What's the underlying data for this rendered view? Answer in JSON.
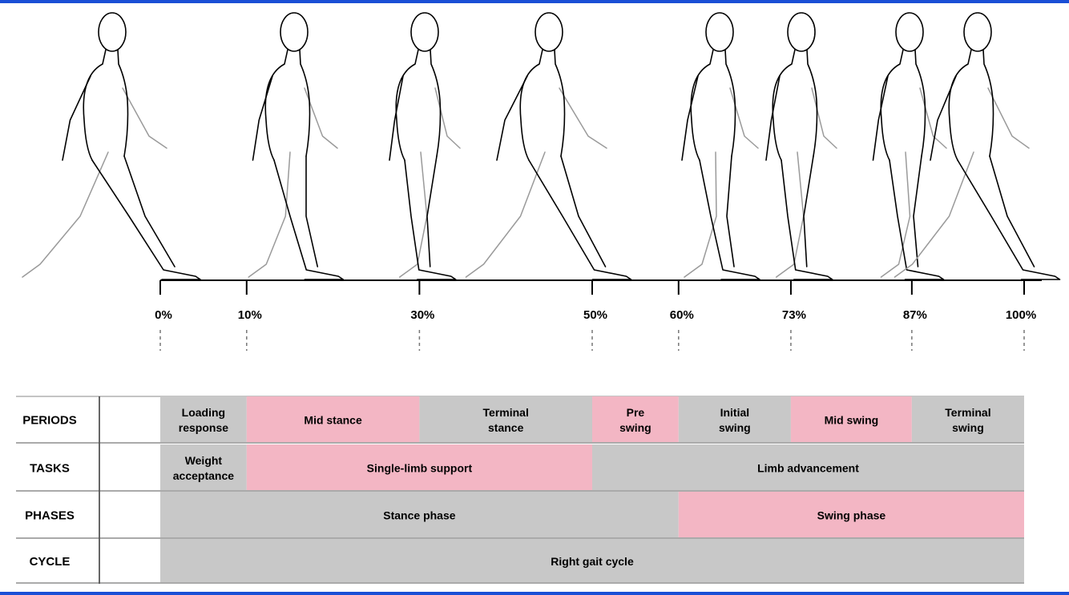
{
  "colors": {
    "frame": "#1a4fd6",
    "gray_cell": "#c8c8c8",
    "pink_cell": "#f3b6c4",
    "ink": "#000000",
    "ghost_limb": "#9a9a9a"
  },
  "figures": [
    "walking-figure-0",
    "walking-figure-10",
    "walking-figure-30",
    "walking-figure-50",
    "walking-figure-60",
    "walking-figure-73",
    "walking-figure-87",
    "walking-figure-100"
  ],
  "timeline": {
    "percent_labels": [
      "0%",
      "10%",
      "30%",
      "50%",
      "60%",
      "73%",
      "87%",
      "100%"
    ],
    "percent_values": [
      0,
      10,
      30,
      50,
      60,
      73,
      87,
      100
    ]
  },
  "table": {
    "rows": [
      {
        "label": "PERIODS",
        "cells": [
          {
            "lines": [
              "Loading",
              "response"
            ],
            "start": 0,
            "end": 10,
            "color": "gray"
          },
          {
            "lines": [
              "Mid stance"
            ],
            "start": 10,
            "end": 30,
            "color": "pink"
          },
          {
            "lines": [
              "Terminal",
              "stance"
            ],
            "start": 30,
            "end": 50,
            "color": "gray"
          },
          {
            "lines": [
              "Pre",
              "swing"
            ],
            "start": 50,
            "end": 60,
            "color": "pink"
          },
          {
            "lines": [
              "Initial",
              "swing"
            ],
            "start": 60,
            "end": 73,
            "color": "gray"
          },
          {
            "lines": [
              "Mid swing"
            ],
            "start": 73,
            "end": 87,
            "color": "pink"
          },
          {
            "lines": [
              "Terminal",
              "swing"
            ],
            "start": 87,
            "end": 100,
            "color": "gray"
          }
        ]
      },
      {
        "label": "TASKS",
        "cells": [
          {
            "lines": [
              "Weight",
              "acceptance"
            ],
            "start": 0,
            "end": 10,
            "color": "gray"
          },
          {
            "lines": [
              "Single-limb support"
            ],
            "start": 10,
            "end": 50,
            "color": "pink"
          },
          {
            "lines": [
              "Limb advancement"
            ],
            "start": 50,
            "end": 100,
            "color": "gray"
          }
        ]
      },
      {
        "label": "PHASES",
        "cells": [
          {
            "lines": [
              "Stance phase"
            ],
            "start": 0,
            "end": 60,
            "color": "gray"
          },
          {
            "lines": [
              "Swing phase"
            ],
            "start": 60,
            "end": 100,
            "color": "pink"
          }
        ]
      },
      {
        "label": "CYCLE",
        "cells": [
          {
            "lines": [
              "Right gait cycle"
            ],
            "start": 0,
            "end": 100,
            "color": "gray"
          }
        ]
      }
    ]
  }
}
